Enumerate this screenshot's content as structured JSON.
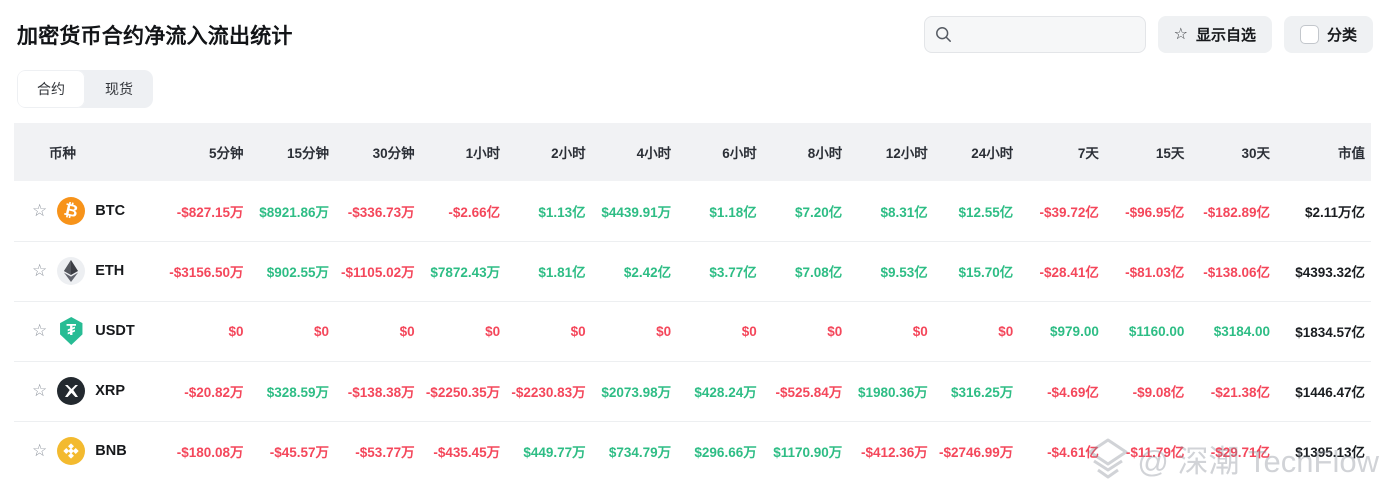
{
  "page": {
    "title": "加密货币合约净流入流出统计",
    "watermark_text": "@ 深潮 TechFlow"
  },
  "controls": {
    "search_placeholder": "",
    "search_value": "",
    "show_favorites_label": "显示自选",
    "favorites_star_icon": "☆",
    "category_label": "分类",
    "category_checked": false
  },
  "tabs": [
    {
      "label": "合约",
      "active": true
    },
    {
      "label": "现货",
      "active": false
    }
  ],
  "colors": {
    "positive": "#2ebd85",
    "negative": "#f4475b"
  },
  "table": {
    "columns": [
      "币种",
      "5分钟",
      "15分钟",
      "30分钟",
      "1小时",
      "2小时",
      "4小时",
      "6小时",
      "8小时",
      "12小时",
      "24小时",
      "7天",
      "15天",
      "30天",
      "市值"
    ],
    "rows": [
      {
        "symbol": "BTC",
        "icon": "btc-icon",
        "values": [
          "-$827.15万",
          "$8921.86万",
          "-$336.73万",
          "-$2.66亿",
          "$1.13亿",
          "$4439.91万",
          "$1.18亿",
          "$7.20亿",
          "$8.31亿",
          "$12.55亿",
          "-$39.72亿",
          "-$96.95亿",
          "-$182.89亿"
        ],
        "market_cap": "$2.11万亿"
      },
      {
        "symbol": "ETH",
        "icon": "eth-icon",
        "values": [
          "-$3156.50万",
          "$902.55万",
          "-$1105.02万",
          "$7872.43万",
          "$1.81亿",
          "$2.42亿",
          "$3.77亿",
          "$7.08亿",
          "$9.53亿",
          "$15.70亿",
          "-$28.41亿",
          "-$81.03亿",
          "-$138.06亿"
        ],
        "market_cap": "$4393.32亿"
      },
      {
        "symbol": "USDT",
        "icon": "usdt-icon",
        "values": [
          "$0",
          "$0",
          "$0",
          "$0",
          "$0",
          "$0",
          "$0",
          "$0",
          "$0",
          "$0",
          "$979.00",
          "$1160.00",
          "$3184.00"
        ],
        "market_cap": "$1834.57亿"
      },
      {
        "symbol": "XRP",
        "icon": "xrp-icon",
        "values": [
          "-$20.82万",
          "$328.59万",
          "-$138.38万",
          "-$2250.35万",
          "-$2230.83万",
          "$2073.98万",
          "$428.24万",
          "-$525.84万",
          "$1980.36万",
          "$316.25万",
          "-$4.69亿",
          "-$9.08亿",
          "-$21.38亿"
        ],
        "market_cap": "$1446.47亿"
      },
      {
        "symbol": "BNB",
        "icon": "bnb-icon",
        "values": [
          "-$180.08万",
          "-$45.57万",
          "-$53.77万",
          "-$435.45万",
          "$449.77万",
          "$734.79万",
          "$296.66万",
          "$1170.90万",
          "-$412.36万",
          "-$2746.99万",
          "-$4.61亿",
          "-$11.79亿",
          "-$29.71亿"
        ],
        "market_cap": "$1395.13亿"
      }
    ]
  }
}
